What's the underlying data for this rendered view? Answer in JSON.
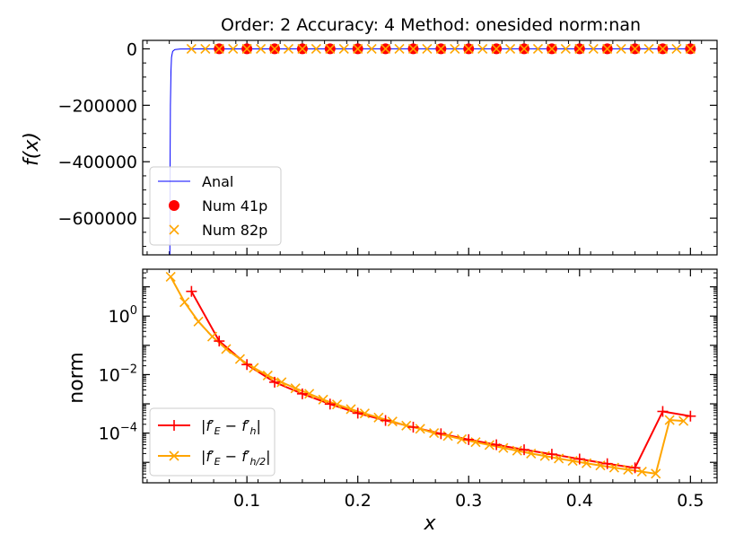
{
  "chart_data": [
    {
      "type": "line",
      "title": "Order: 2 Accuracy: 4 Method: onesided norm:nan",
      "ylabel": "f(x)",
      "xlim": [
        0.006,
        0.524
      ],
      "ylim": [
        -730000,
        30000
      ],
      "yticks": [
        0,
        -200000,
        -400000,
        -600000
      ],
      "ytick_labels": [
        "0",
        "−200000",
        "−400000",
        "−600000"
      ],
      "legend_position": "lower-left",
      "series": [
        {
          "name": "Anal",
          "color": "#0000ff",
          "style": "line",
          "x": [
            0.0305,
            0.0307,
            0.031,
            0.0315,
            0.032,
            0.033,
            0.035,
            0.04,
            0.06,
            0.1,
            0.2,
            0.3,
            0.4,
            0.5
          ],
          "y": [
            -730000,
            -420000,
            -200000,
            -80000,
            -30000,
            -9000,
            -2500,
            -600,
            -100,
            -20,
            -3,
            -1,
            -0.5,
            -0.2
          ]
        },
        {
          "name": "Num 41p",
          "color": "#ff0000",
          "style": "circle",
          "x": [
            0.075,
            0.1,
            0.125,
            0.15,
            0.175,
            0.2,
            0.225,
            0.25,
            0.275,
            0.3,
            0.325,
            0.35,
            0.375,
            0.4,
            0.425,
            0.45,
            0.475,
            0.5
          ],
          "y": [
            0,
            0,
            0,
            0,
            0,
            0,
            0,
            0,
            0,
            0,
            0,
            0,
            0,
            0,
            0,
            0,
            0,
            0
          ]
        },
        {
          "name": "Num 82p",
          "color": "#ffa500",
          "style": "x",
          "x": [
            0.05,
            0.0625,
            0.075,
            0.0875,
            0.1,
            0.1125,
            0.125,
            0.1375,
            0.15,
            0.1625,
            0.175,
            0.1875,
            0.2,
            0.2125,
            0.225,
            0.2375,
            0.25,
            0.2625,
            0.275,
            0.2875,
            0.3,
            0.3125,
            0.325,
            0.3375,
            0.35,
            0.3625,
            0.375,
            0.3875,
            0.4,
            0.4125,
            0.425,
            0.4375,
            0.45,
            0.4625,
            0.475,
            0.4875,
            0.5
          ],
          "y": [
            0,
            0,
            0,
            0,
            0,
            0,
            0,
            0,
            0,
            0,
            0,
            0,
            0,
            0,
            0,
            0,
            0,
            0,
            0,
            0,
            0,
            0,
            0,
            0,
            0,
            0,
            0,
            0,
            0,
            0,
            0,
            0,
            0,
            0,
            0,
            0,
            0
          ]
        }
      ]
    },
    {
      "type": "line",
      "xlabel": "x",
      "ylabel": "norm",
      "yscale": "log",
      "xlim": [
        0.006,
        0.524
      ],
      "ylim": [
        2e-06,
        40
      ],
      "xticks": [
        0.1,
        0.2,
        0.3,
        0.4,
        0.5
      ],
      "xtick_labels": [
        "0.1",
        "0.2",
        "0.3",
        "0.4",
        "0.5"
      ],
      "yticks": [
        1,
        0.01,
        0.0001
      ],
      "ytick_labels": [
        "10",
        "10",
        "10"
      ],
      "ytick_exponents": [
        "0",
        "−2",
        "−4"
      ],
      "legend_position": "lower-left",
      "series": [
        {
          "name": "|f′E − f′h|",
          "legend_base": "|f′",
          "legend_sub": "E",
          "legend_mid": " − f′",
          "legend_sub2": "h",
          "legend_end": "|",
          "color": "#ff0000",
          "marker": "plus",
          "x": [
            0.05,
            0.075,
            0.1,
            0.125,
            0.15,
            0.175,
            0.2,
            0.225,
            0.25,
            0.275,
            0.3,
            0.325,
            0.35,
            0.375,
            0.4,
            0.425,
            0.45,
            0.475,
            0.5
          ],
          "y": [
            7,
            0.14,
            0.022,
            0.0055,
            0.0022,
            0.00098,
            0.00048,
            0.00027,
            0.00016,
            9.5e-05,
            6e-05,
            4e-05,
            2.7e-05,
            1.9e-05,
            1.3e-05,
            9e-06,
            6.5e-06,
            0.00055,
            0.00038
          ]
        },
        {
          "name": "|f′E − f′h/2|",
          "legend_base": "|f′",
          "legend_sub": "E",
          "legend_mid": " − f′",
          "legend_sub2": "h/2",
          "legend_end": "|",
          "color": "#ffa500",
          "marker": "x",
          "x": [
            0.03125,
            0.04375,
            0.05625,
            0.06875,
            0.08125,
            0.09375,
            0.10625,
            0.11875,
            0.13125,
            0.14375,
            0.15625,
            0.16875,
            0.18125,
            0.19375,
            0.20625,
            0.21875,
            0.23125,
            0.24375,
            0.25625,
            0.26875,
            0.28125,
            0.29375,
            0.30625,
            0.31875,
            0.33125,
            0.34375,
            0.35625,
            0.36875,
            0.38125,
            0.39375,
            0.40625,
            0.41875,
            0.43125,
            0.44375,
            0.45625,
            0.46875,
            0.48125,
            0.49375
          ],
          "y": [
            22,
            3,
            0.65,
            0.2,
            0.075,
            0.034,
            0.017,
            0.0093,
            0.0055,
            0.0034,
            0.0022,
            0.0014,
            0.00095,
            0.00066,
            0.00047,
            0.00034,
            0.00025,
            0.00018,
            0.00014,
            0.0001,
            8e-05,
            6.2e-05,
            4.9e-05,
            3.9e-05,
            3.1e-05,
            2.5e-05,
            2e-05,
            1.65e-05,
            1.35e-05,
            1.12e-05,
            9.3e-06,
            7.8e-06,
            6.6e-06,
            5.6e-06,
            4.8e-06,
            4.1e-06,
            0.00028,
            0.00026
          ]
        }
      ]
    }
  ]
}
